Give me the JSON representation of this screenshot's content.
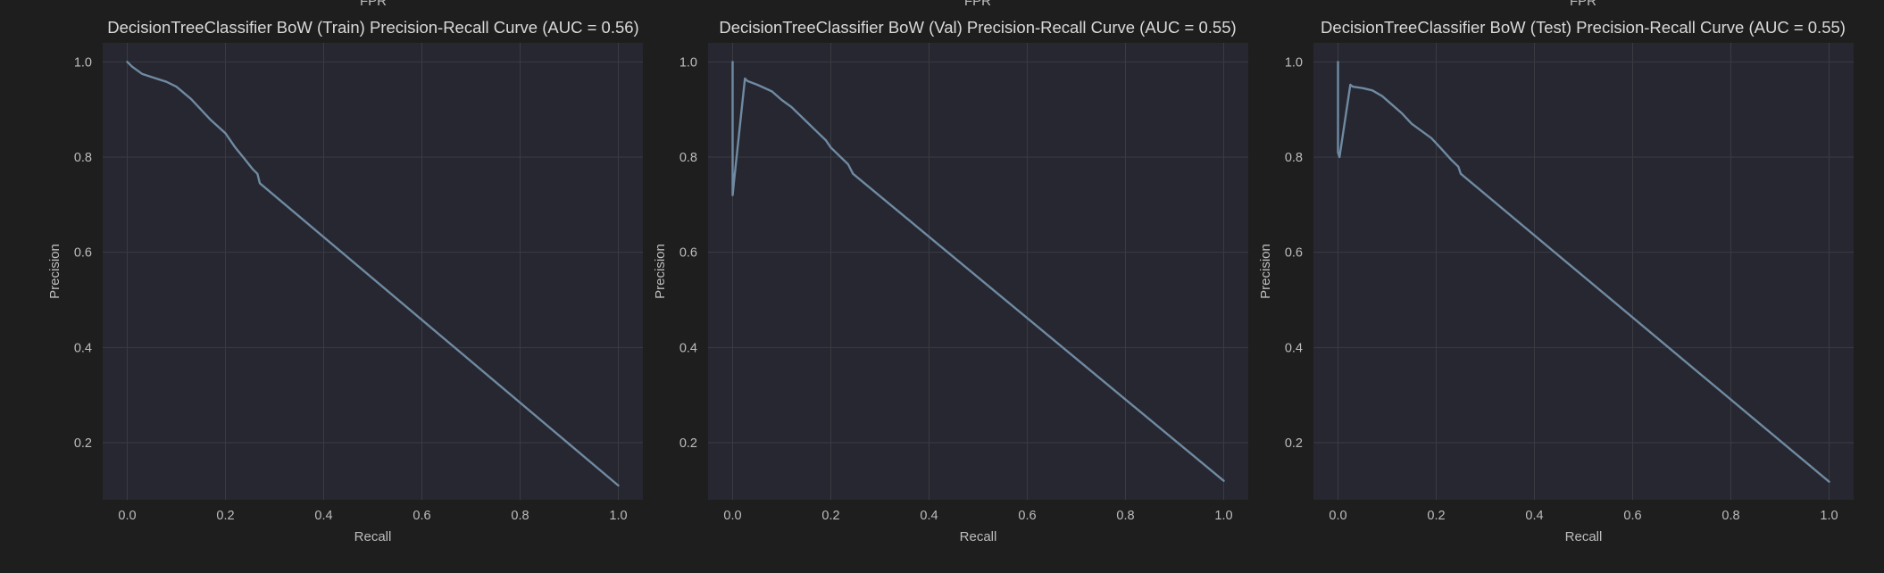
{
  "colors": {
    "background": "#1e1e1e",
    "plot_background": "#262730",
    "grid": "#3a3b42",
    "line": "#6f8aa2",
    "text": "#bdbdbd"
  },
  "clipped_top_label": "FPR",
  "chart_data": [
    {
      "type": "line",
      "title": "DecisionTreeClassifier BoW (Train) Precision-Recall Curve (AUC = 0.56)",
      "xlabel": "Recall",
      "ylabel": "Precision",
      "xlim": [
        -0.05,
        1.05
      ],
      "ylim": [
        0.08,
        1.04
      ],
      "xticks": [
        "0.0",
        "0.2",
        "0.4",
        "0.6",
        "0.8",
        "1.0"
      ],
      "yticks": [
        "0.2",
        "0.4",
        "0.6",
        "0.8",
        "1.0"
      ],
      "grid": true,
      "series": [
        {
          "x": [
            0.0,
            0.01,
            0.03,
            0.05,
            0.08,
            0.1,
            0.13,
            0.15,
            0.17,
            0.2,
            0.22,
            0.24,
            0.255,
            0.265,
            0.27,
            1.0
          ],
          "y": [
            1.0,
            0.99,
            0.975,
            0.968,
            0.958,
            0.948,
            0.922,
            0.9,
            0.878,
            0.85,
            0.82,
            0.795,
            0.775,
            0.765,
            0.745,
            0.11
          ]
        }
      ]
    },
    {
      "type": "line",
      "title": "DecisionTreeClassifier BoW (Val) Precision-Recall Curve (AUC = 0.55)",
      "xlabel": "Recall",
      "ylabel": "Precision",
      "xlim": [
        -0.05,
        1.05
      ],
      "ylim": [
        0.08,
        1.04
      ],
      "xticks": [
        "0.0",
        "0.2",
        "0.4",
        "0.6",
        "0.8",
        "1.0"
      ],
      "yticks": [
        "0.2",
        "0.4",
        "0.6",
        "0.8",
        "1.0"
      ],
      "grid": true,
      "series": [
        {
          "x": [
            0.0,
            0.0,
            0.003,
            0.025,
            0.03,
            0.05,
            0.08,
            0.1,
            0.12,
            0.15,
            0.17,
            0.19,
            0.2,
            0.22,
            0.235,
            0.245,
            1.0
          ],
          "y": [
            1.0,
            0.72,
            0.75,
            0.965,
            0.96,
            0.952,
            0.938,
            0.92,
            0.905,
            0.875,
            0.855,
            0.835,
            0.82,
            0.8,
            0.785,
            0.765,
            0.12
          ]
        }
      ]
    },
    {
      "type": "line",
      "title": "DecisionTreeClassifier BoW (Test) Precision-Recall Curve (AUC = 0.55)",
      "xlabel": "Recall",
      "ylabel": "Precision",
      "xlim": [
        -0.05,
        1.05
      ],
      "ylim": [
        0.08,
        1.04
      ],
      "xticks": [
        "0.0",
        "0.2",
        "0.4",
        "0.6",
        "0.8",
        "1.0"
      ],
      "yticks": [
        "0.2",
        "0.4",
        "0.6",
        "0.8",
        "1.0"
      ],
      "grid": true,
      "series": [
        {
          "x": [
            0.0,
            0.0,
            0.003,
            0.025,
            0.03,
            0.05,
            0.07,
            0.09,
            0.11,
            0.13,
            0.15,
            0.17,
            0.19,
            0.21,
            0.23,
            0.245,
            0.25,
            1.0
          ],
          "y": [
            1.0,
            0.81,
            0.8,
            0.952,
            0.948,
            0.945,
            0.94,
            0.928,
            0.91,
            0.892,
            0.87,
            0.855,
            0.84,
            0.818,
            0.795,
            0.78,
            0.765,
            0.118
          ]
        }
      ]
    }
  ]
}
